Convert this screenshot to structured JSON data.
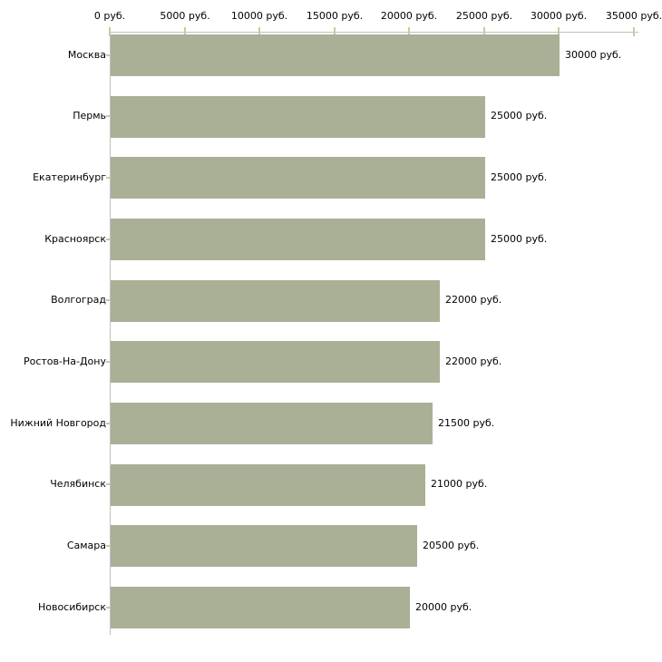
{
  "chart_data": {
    "type": "bar",
    "orientation": "horizontal",
    "title": "",
    "xlabel": "",
    "ylabel": "",
    "categories": [
      "Москва",
      "Пермь",
      "Екатеринбург",
      "Красноярск",
      "Волгоград",
      "Ростов-На-Дону",
      "Нижний Новгород",
      "Челябинск",
      "Самара",
      "Новосибирск"
    ],
    "values": [
      30000,
      25000,
      25000,
      25000,
      22000,
      22000,
      21500,
      21000,
      20500,
      20000
    ],
    "value_labels": [
      "30000 руб.",
      "25000 руб.",
      "25000 руб.",
      "25000 руб.",
      "22000 руб.",
      "22000 руб.",
      "21500 руб.",
      "21000 руб.",
      "20500 руб.",
      "20000 руб."
    ],
    "x_ticks": [
      0,
      5000,
      10000,
      15000,
      20000,
      25000,
      30000,
      35000
    ],
    "x_tick_labels": [
      "0 руб.",
      "5000 руб.",
      "10000 руб.",
      "15000 руб.",
      "20000 руб.",
      "25000 руб.",
      "30000 руб.",
      "35000 руб."
    ],
    "xlim": [
      0,
      35000
    ],
    "unit": "руб.",
    "grid": false,
    "legend": null,
    "colors": {
      "bar": "#aab096",
      "axis_line": "#c0c0c0",
      "tick_mark": "#c9c9a4",
      "text": "#000000",
      "background": "#ffffff"
    }
  }
}
